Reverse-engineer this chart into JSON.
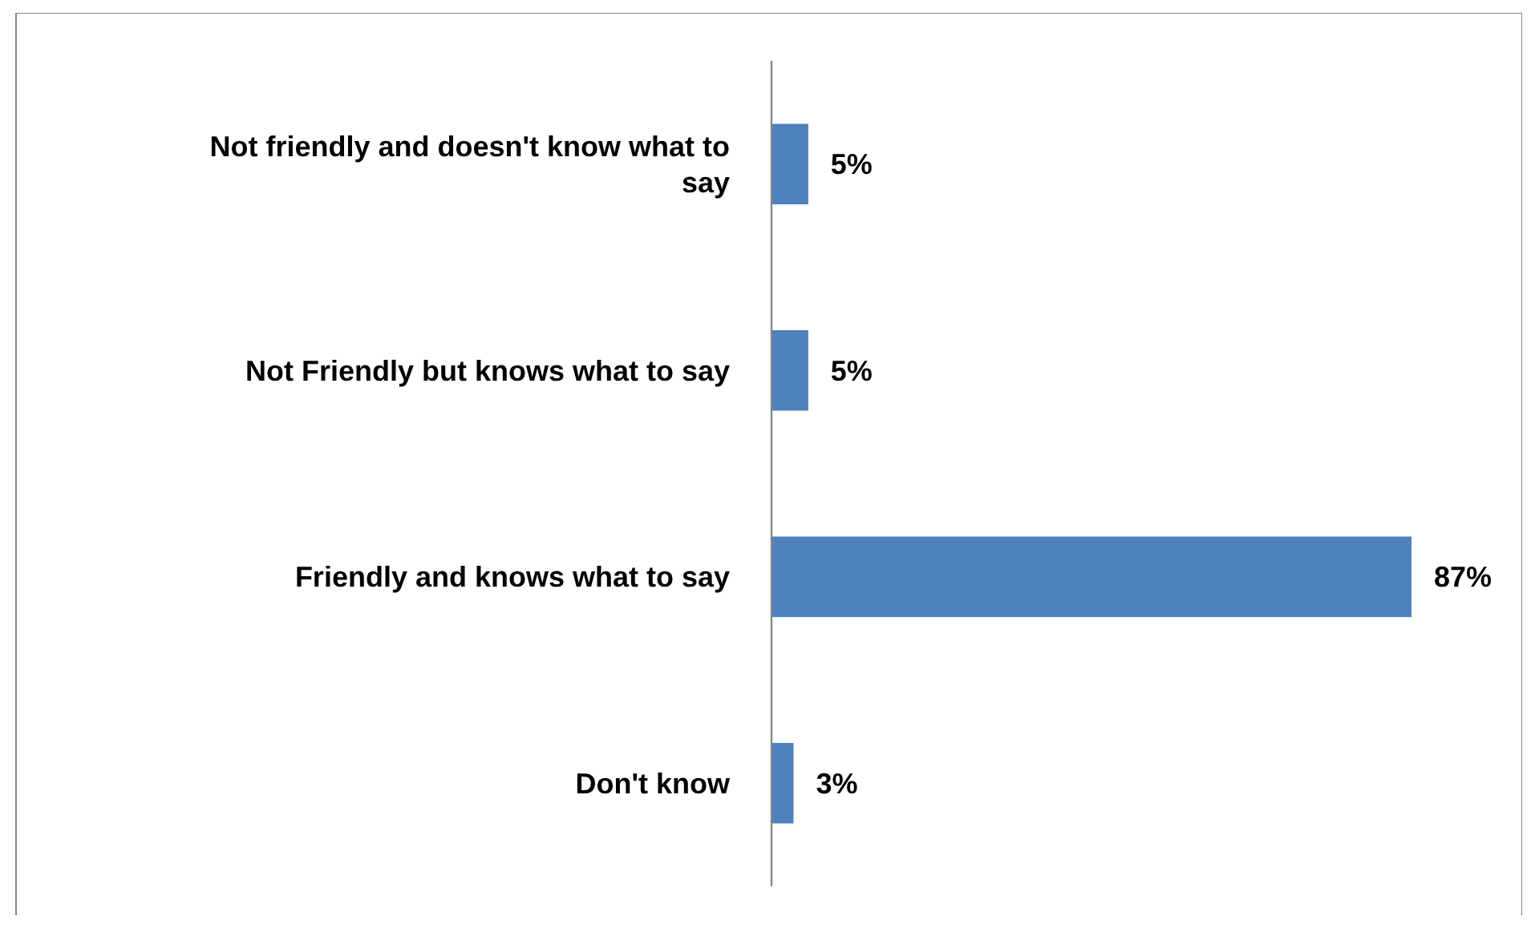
{
  "chart_data": {
    "type": "bar",
    "orientation": "horizontal",
    "categories": [
      "Not friendly and doesn't know what to say",
      "Not Friendly but knows what to say",
      "Friendly and knows what to say",
      "Don't know"
    ],
    "values": [
      5,
      5,
      87,
      3
    ],
    "color": "#4f81bd",
    "value_labels": [
      "5%",
      "5%",
      "87%",
      "3%"
    ]
  }
}
